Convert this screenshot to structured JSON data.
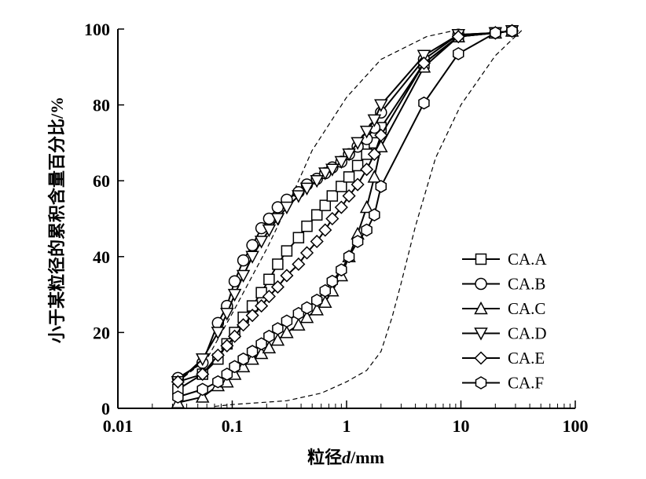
{
  "chart_data": {
    "type": "line",
    "title": "",
    "xlabel_prefix": "粒径",
    "xlabel_var": "d",
    "xlabel_unit": "/mm",
    "ylabel": "小于某粒径的累积含量百分比/%",
    "xscale": "log",
    "xlim": [
      0.01,
      100
    ],
    "ylim": [
      0,
      100
    ],
    "xticks": [
      0.01,
      0.1,
      1,
      10,
      100
    ],
    "xtick_labels": [
      "0.01",
      "0.1",
      "1",
      "10",
      "100"
    ],
    "yticks": [
      0,
      20,
      40,
      60,
      80,
      100
    ],
    "ytick_labels": [
      "0",
      "20",
      "40",
      "60",
      "80",
      "100"
    ],
    "grid": false,
    "legend_position": "right",
    "x": [
      0.0335,
      0.055,
      0.075,
      0.09,
      0.105,
      0.125,
      0.15,
      0.18,
      0.21,
      0.25,
      0.3,
      0.38,
      0.45,
      0.55,
      0.65,
      0.75,
      0.9,
      1.05,
      1.25,
      1.5,
      1.75,
      2.0,
      4.75,
      9.5,
      20,
      28
    ],
    "series": [
      {
        "name": "CA.A",
        "marker": "square",
        "values": [
          5,
          9,
          13,
          17,
          20,
          24,
          27,
          30.5,
          34,
          38,
          41.5,
          45,
          48,
          51,
          53.5,
          56,
          58.5,
          61,
          64,
          67,
          70,
          74,
          91,
          98,
          99,
          99.5
        ]
      },
      {
        "name": "CA.B",
        "marker": "circle",
        "values": [
          8,
          12,
          22.5,
          27,
          33.5,
          39,
          43,
          47.5,
          50,
          53,
          55,
          57,
          59,
          60.5,
          62,
          63.5,
          65,
          67,
          69,
          71,
          74,
          78,
          92,
          98.5,
          99,
          99.5
        ]
      },
      {
        "name": "CA.C",
        "marker": "triangle-up",
        "values": [
          1.5,
          3,
          6,
          7,
          9,
          11,
          13,
          14.5,
          16,
          18,
          20,
          22,
          24,
          26,
          28,
          31,
          35,
          40,
          46,
          53,
          61,
          69,
          90,
          98,
          99,
          99.5
        ]
      },
      {
        "name": "CA.D",
        "marker": "triangle-down",
        "values": [
          7,
          13,
          20,
          25,
          30,
          35,
          40,
          44,
          47,
          50,
          53,
          56,
          58,
          60,
          62,
          63,
          65,
          67,
          70,
          73,
          76,
          80,
          93,
          98.5,
          99,
          99.5
        ]
      },
      {
        "name": "CA.E",
        "marker": "diamond",
        "values": [
          7,
          9,
          14,
          16.5,
          19,
          22,
          24.5,
          27,
          29.5,
          32,
          35,
          38,
          41,
          44,
          47,
          50,
          53,
          56,
          59,
          63,
          67,
          72,
          91,
          98,
          99,
          99.5
        ]
      },
      {
        "name": "CA.F",
        "marker": "hexagon",
        "values": [
          3,
          5,
          7,
          9,
          11,
          13,
          15,
          17,
          19,
          21,
          23,
          25,
          26.5,
          28.5,
          31,
          33.5,
          36.5,
          40,
          44,
          47,
          51,
          58.5,
          80.5,
          93.5,
          99,
          99.5
        ]
      }
    ],
    "envelopes": [
      {
        "name": "upper-limit",
        "style": "dashed",
        "x": [
          0.0335,
          0.06,
          0.1,
          0.2,
          0.3,
          0.5,
          1,
          2,
          5,
          10
        ],
        "y": [
          7,
          13,
          25,
          42,
          53,
          68,
          82,
          92,
          98,
          100
        ]
      },
      {
        "name": "lower-limit",
        "style": "dashed",
        "x": [
          0.07,
          0.1,
          0.3,
          0.6,
          1,
          1.5,
          2,
          2.5,
          3,
          4,
          6,
          10,
          20,
          35
        ],
        "y": [
          0.5,
          1,
          2,
          4,
          7,
          10,
          15,
          24,
          33,
          48,
          66,
          80,
          93,
          100
        ]
      }
    ]
  }
}
